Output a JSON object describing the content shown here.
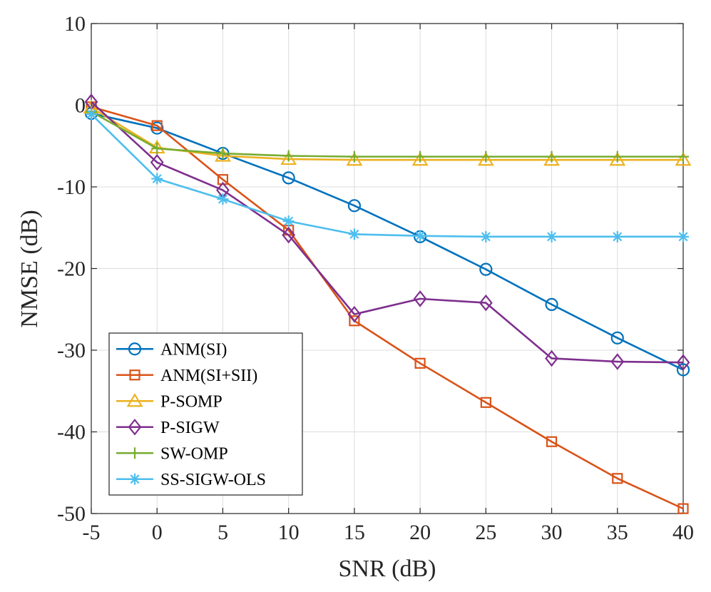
{
  "chart_data": {
    "type": "line",
    "title": "",
    "xlabel": "SNR (dB)",
    "ylabel": "NMSE (dB)",
    "xlim": [
      -5,
      40
    ],
    "ylim": [
      -50,
      10
    ],
    "grid": true,
    "legend_position": "bottom-left",
    "x": [
      -5,
      0,
      5,
      10,
      15,
      20,
      25,
      30,
      35,
      40
    ],
    "xticks": [
      -5,
      0,
      5,
      10,
      15,
      20,
      25,
      30,
      35,
      40
    ],
    "xtick_labels": [
      "-5",
      "0",
      "5",
      "10",
      "15",
      "20",
      "25",
      "30",
      "35",
      "40"
    ],
    "yticks": [
      10,
      0,
      -10,
      -20,
      -30,
      -40,
      -50
    ],
    "ytick_labels": [
      "10",
      "0",
      "-10",
      "-20",
      "-30",
      "-40",
      "-50"
    ],
    "series": [
      {
        "name": "ANM(SI)",
        "color": "#0072BD",
        "marker": "circle",
        "values": [
          -1.0,
          -2.8,
          -5.9,
          -8.9,
          -12.3,
          -16.1,
          -20.1,
          -24.4,
          -28.5,
          -32.4
        ]
      },
      {
        "name": "ANM(SI+SII)",
        "color": "#D95319",
        "marker": "square",
        "values": [
          -0.2,
          -2.5,
          -9.1,
          -15.3,
          -26.4,
          -31.6,
          -36.4,
          -41.2,
          -45.7,
          -49.4
        ]
      },
      {
        "name": "P-SOMP",
        "color": "#EDB120",
        "marker": "triangle",
        "values": [
          -0.3,
          -5.2,
          -6.2,
          -6.6,
          -6.7,
          -6.7,
          -6.7,
          -6.7,
          -6.7,
          -6.7
        ]
      },
      {
        "name": "P-SIGW",
        "color": "#7E2F8E",
        "marker": "diamond",
        "values": [
          0.4,
          -7.0,
          -10.4,
          -15.9,
          -25.6,
          -23.7,
          -24.2,
          -31.0,
          -31.4,
          -31.5
        ]
      },
      {
        "name": "SW-OMP",
        "color": "#77AC30",
        "marker": "plus",
        "values": [
          -0.8,
          -5.3,
          -5.9,
          -6.2,
          -6.3,
          -6.3,
          -6.3,
          -6.3,
          -6.3,
          -6.3
        ]
      },
      {
        "name": "SS-SIGW-OLS",
        "color": "#4DBEEE",
        "marker": "asterisk",
        "values": [
          -1.1,
          -9.0,
          -11.5,
          -14.2,
          -15.8,
          -16.0,
          -16.1,
          -16.1,
          -16.1,
          -16.1
        ]
      }
    ]
  }
}
